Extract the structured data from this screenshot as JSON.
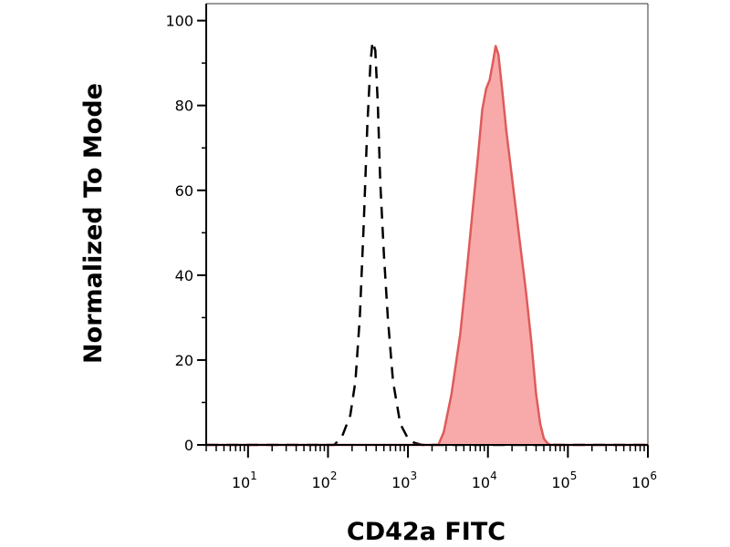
{
  "chart_data": {
    "type": "area",
    "title": "",
    "xlabel": "CD42a FITC",
    "ylabel": "Normalized To Mode",
    "x_scale": "log",
    "xlim": [
      3,
      1000000
    ],
    "ylim": [
      0,
      104
    ],
    "y_ticks": [
      {
        "value": 0,
        "label": "0"
      },
      {
        "value": 20,
        "label": "20"
      },
      {
        "value": 40,
        "label": "40"
      },
      {
        "value": 60,
        "label": "60"
      },
      {
        "value": 80,
        "label": "80"
      },
      {
        "value": 100,
        "label": "100"
      }
    ],
    "x_ticks": [
      {
        "value": 10,
        "base": "10",
        "exp": "1"
      },
      {
        "value": 100,
        "base": "10",
        "exp": "2"
      },
      {
        "value": 1000,
        "base": "10",
        "exp": "3"
      },
      {
        "value": 10000,
        "base": "10",
        "exp": "4"
      },
      {
        "value": 100000,
        "base": "10",
        "exp": "5"
      },
      {
        "value": 1000000,
        "base": "10",
        "exp": "6"
      }
    ],
    "grid": false,
    "series": [
      {
        "style": "dashed-line",
        "color": "#000000",
        "x": [
          3,
          120,
          150,
          190,
          220,
          250,
          280,
          310,
          340,
          360,
          390,
          420,
          450,
          500,
          560,
          650,
          800,
          1000,
          1200,
          1500,
          2000,
          1000000
        ],
        "y": [
          0,
          0,
          2,
          7,
          15,
          30,
          52,
          75,
          90,
          95,
          93,
          80,
          62,
          45,
          30,
          15,
          5,
          1.5,
          0.5,
          0,
          0,
          0
        ]
      },
      {
        "style": "filled-area",
        "color": "#e05a5a",
        "fill": "#f8aaaa",
        "x": [
          3,
          2400,
          2800,
          3500,
          4500,
          5500,
          6500,
          7500,
          8500,
          9500,
          10500,
          11500,
          12500,
          13500,
          15000,
          17000,
          20000,
          25000,
          30000,
          35000,
          40000,
          45000,
          50000,
          55000,
          60000,
          1000000
        ],
        "y": [
          0,
          0,
          3,
          12,
          26,
          42,
          56,
          68,
          79,
          84,
          86,
          90,
          94,
          92,
          84,
          74,
          63,
          48,
          36,
          24,
          12,
          5,
          1.5,
          0.5,
          0,
          0
        ]
      }
    ]
  }
}
